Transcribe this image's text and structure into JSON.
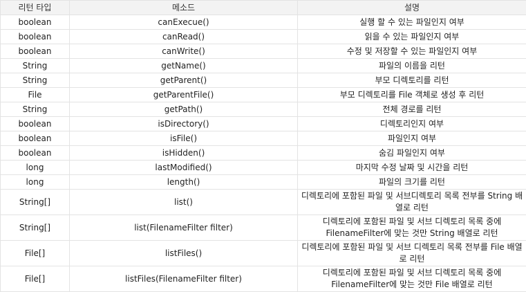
{
  "headers": [
    "리턴 타입",
    "메소드",
    "설명"
  ],
  "rows": [
    {
      "type": "boolean",
      "method": "canExecue()",
      "desc": "실행 할 수 있는 파일인지 여부"
    },
    {
      "type": "boolean",
      "method": "canRead()",
      "desc": "읽을 수 있는 파일인지 여부"
    },
    {
      "type": "boolean",
      "method": "canWrite()",
      "desc": "수정 및 저장할 수 있는 파일인지 여부"
    },
    {
      "type": "String",
      "method": "getName()",
      "desc": "파일의 이름을 리턴"
    },
    {
      "type": "String",
      "method": "getParent()",
      "desc": "부모 디렉토리를 리턴"
    },
    {
      "type": "File",
      "method": "getParentFile()",
      "desc": "부모 디렉토리를 File 객체로 생성 후 리턴"
    },
    {
      "type": "String",
      "method": "getPath()",
      "desc": "전체 경로를 리턴"
    },
    {
      "type": "boolean",
      "method": "isDirectory()",
      "desc": "디렉토리인지 여부"
    },
    {
      "type": "boolean",
      "method": "isFile()",
      "desc": "파일인지 여부"
    },
    {
      "type": "boolean",
      "method": "isHidden()",
      "desc": "숨김 파일인지 여부"
    },
    {
      "type": "long",
      "method": "lastModified()",
      "desc": "마지막 수정 날짜 및 시간을 리턴"
    },
    {
      "type": "long",
      "method": "length()",
      "desc": "파일의 크기를 리턴"
    },
    {
      "type": "String[]",
      "method": "list()",
      "desc": "디렉토리에 포함된 파일 및 서브디렉토리 목록 전부를 String 배열로 리턴"
    },
    {
      "type": "String[]",
      "method": "list(FilenameFilter filter)",
      "desc": "디렉토리에 포함된 파일 및 서브 디렉토리 목록 중에 FilenameFilter에 맞는 것만 String 배열로 리턴"
    },
    {
      "type": "File[]",
      "method": "listFiles()",
      "desc": "디렉토리에 포함된 파일 및 서브 디렉토리 목록 전부를 File 배열로 리턴"
    },
    {
      "type": "File[]",
      "method": "listFiles(FilenameFilter filter)",
      "desc": "디렉토리에 포함된 파일 및 서브 디렉토리 목록 중에 FilenameFilter에 맞는 것만 File 배열로 리턴"
    }
  ]
}
